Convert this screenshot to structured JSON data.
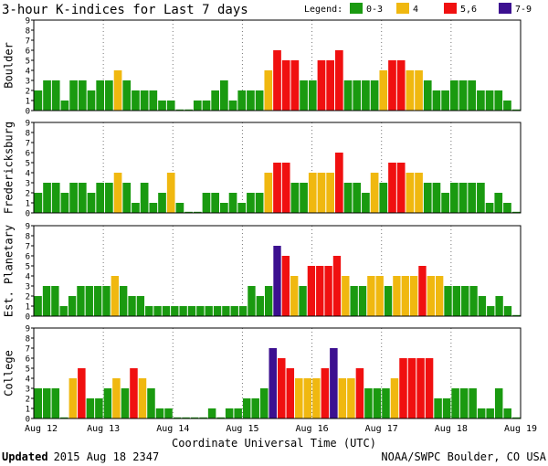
{
  "chart_data": {
    "type": "bar",
    "title": "3-hour K-indices for Last 7 days",
    "legend": {
      "label": "Legend:",
      "items": [
        {
          "label": "0-3",
          "color": "#1a9a10"
        },
        {
          "label": "4",
          "color": "#f0b810"
        },
        {
          "label": "5,6",
          "color": "#f01010"
        },
        {
          "label": "7-9",
          "color": "#3c1090"
        }
      ]
    },
    "ylim": [
      0,
      9
    ],
    "yticks": [
      "0",
      "1",
      "2",
      "3",
      "4",
      "5",
      "6",
      "7",
      "8",
      "9"
    ],
    "xticks": [
      "Aug 12",
      "Aug 13",
      "Aug 14",
      "Aug 15",
      "Aug 16",
      "Aug 17",
      "Aug 18",
      "Aug 19"
    ],
    "xlabel": "Coordinate Universal Time (UTC)",
    "series": [
      {
        "name": "Boulder",
        "values": [
          2,
          3,
          3,
          1,
          3,
          3,
          2,
          3,
          3,
          4,
          3,
          2,
          2,
          2,
          1,
          1,
          0,
          0,
          1,
          1,
          2,
          3,
          1,
          2,
          2,
          2,
          4,
          6,
          5,
          5,
          3,
          3,
          5,
          5,
          6,
          3,
          3,
          3,
          3,
          4,
          5,
          5,
          4,
          4,
          3,
          2,
          2,
          3,
          3,
          3,
          2,
          2,
          2,
          1,
          0
        ]
      },
      {
        "name": "Fredericksburg",
        "values": [
          2,
          3,
          3,
          2,
          3,
          3,
          2,
          3,
          3,
          4,
          3,
          1,
          3,
          1,
          2,
          4,
          1,
          0,
          0,
          2,
          2,
          1,
          2,
          1,
          2,
          2,
          4,
          5,
          5,
          3,
          3,
          4,
          4,
          4,
          6,
          3,
          3,
          2,
          4,
          3,
          5,
          5,
          4,
          4,
          3,
          3,
          2,
          3,
          3,
          3,
          3,
          1,
          2,
          1,
          0
        ]
      },
      {
        "name": "Est. Planetary",
        "values": [
          2,
          3,
          3,
          1,
          2,
          3,
          3,
          3,
          3,
          4,
          3,
          2,
          2,
          1,
          1,
          1,
          1,
          1,
          1,
          1,
          1,
          1,
          1,
          1,
          1,
          3,
          2,
          3,
          7,
          6,
          4,
          3,
          5,
          5,
          5,
          6,
          4,
          3,
          3,
          4,
          4,
          3,
          4,
          4,
          4,
          5,
          4,
          4,
          3,
          3,
          3,
          3,
          2,
          1,
          2,
          1,
          0
        ]
      },
      {
        "name": "College",
        "values": [
          3,
          3,
          3,
          0,
          4,
          5,
          2,
          2,
          3,
          4,
          3,
          5,
          4,
          3,
          1,
          1,
          0,
          0,
          0,
          0,
          1,
          0,
          1,
          1,
          2,
          2,
          3,
          7,
          6,
          5,
          4,
          4,
          4,
          5,
          7,
          4,
          4,
          5,
          3,
          3,
          3,
          4,
          6,
          6,
          6,
          6,
          2,
          2,
          3,
          3,
          3,
          1,
          1,
          3,
          1,
          0
        ]
      }
    ]
  },
  "footer": {
    "updated_label": "Updated",
    "updated_value": "2015 Aug 18 2347",
    "source": "NOAA/SWPC Boulder, CO USA"
  }
}
